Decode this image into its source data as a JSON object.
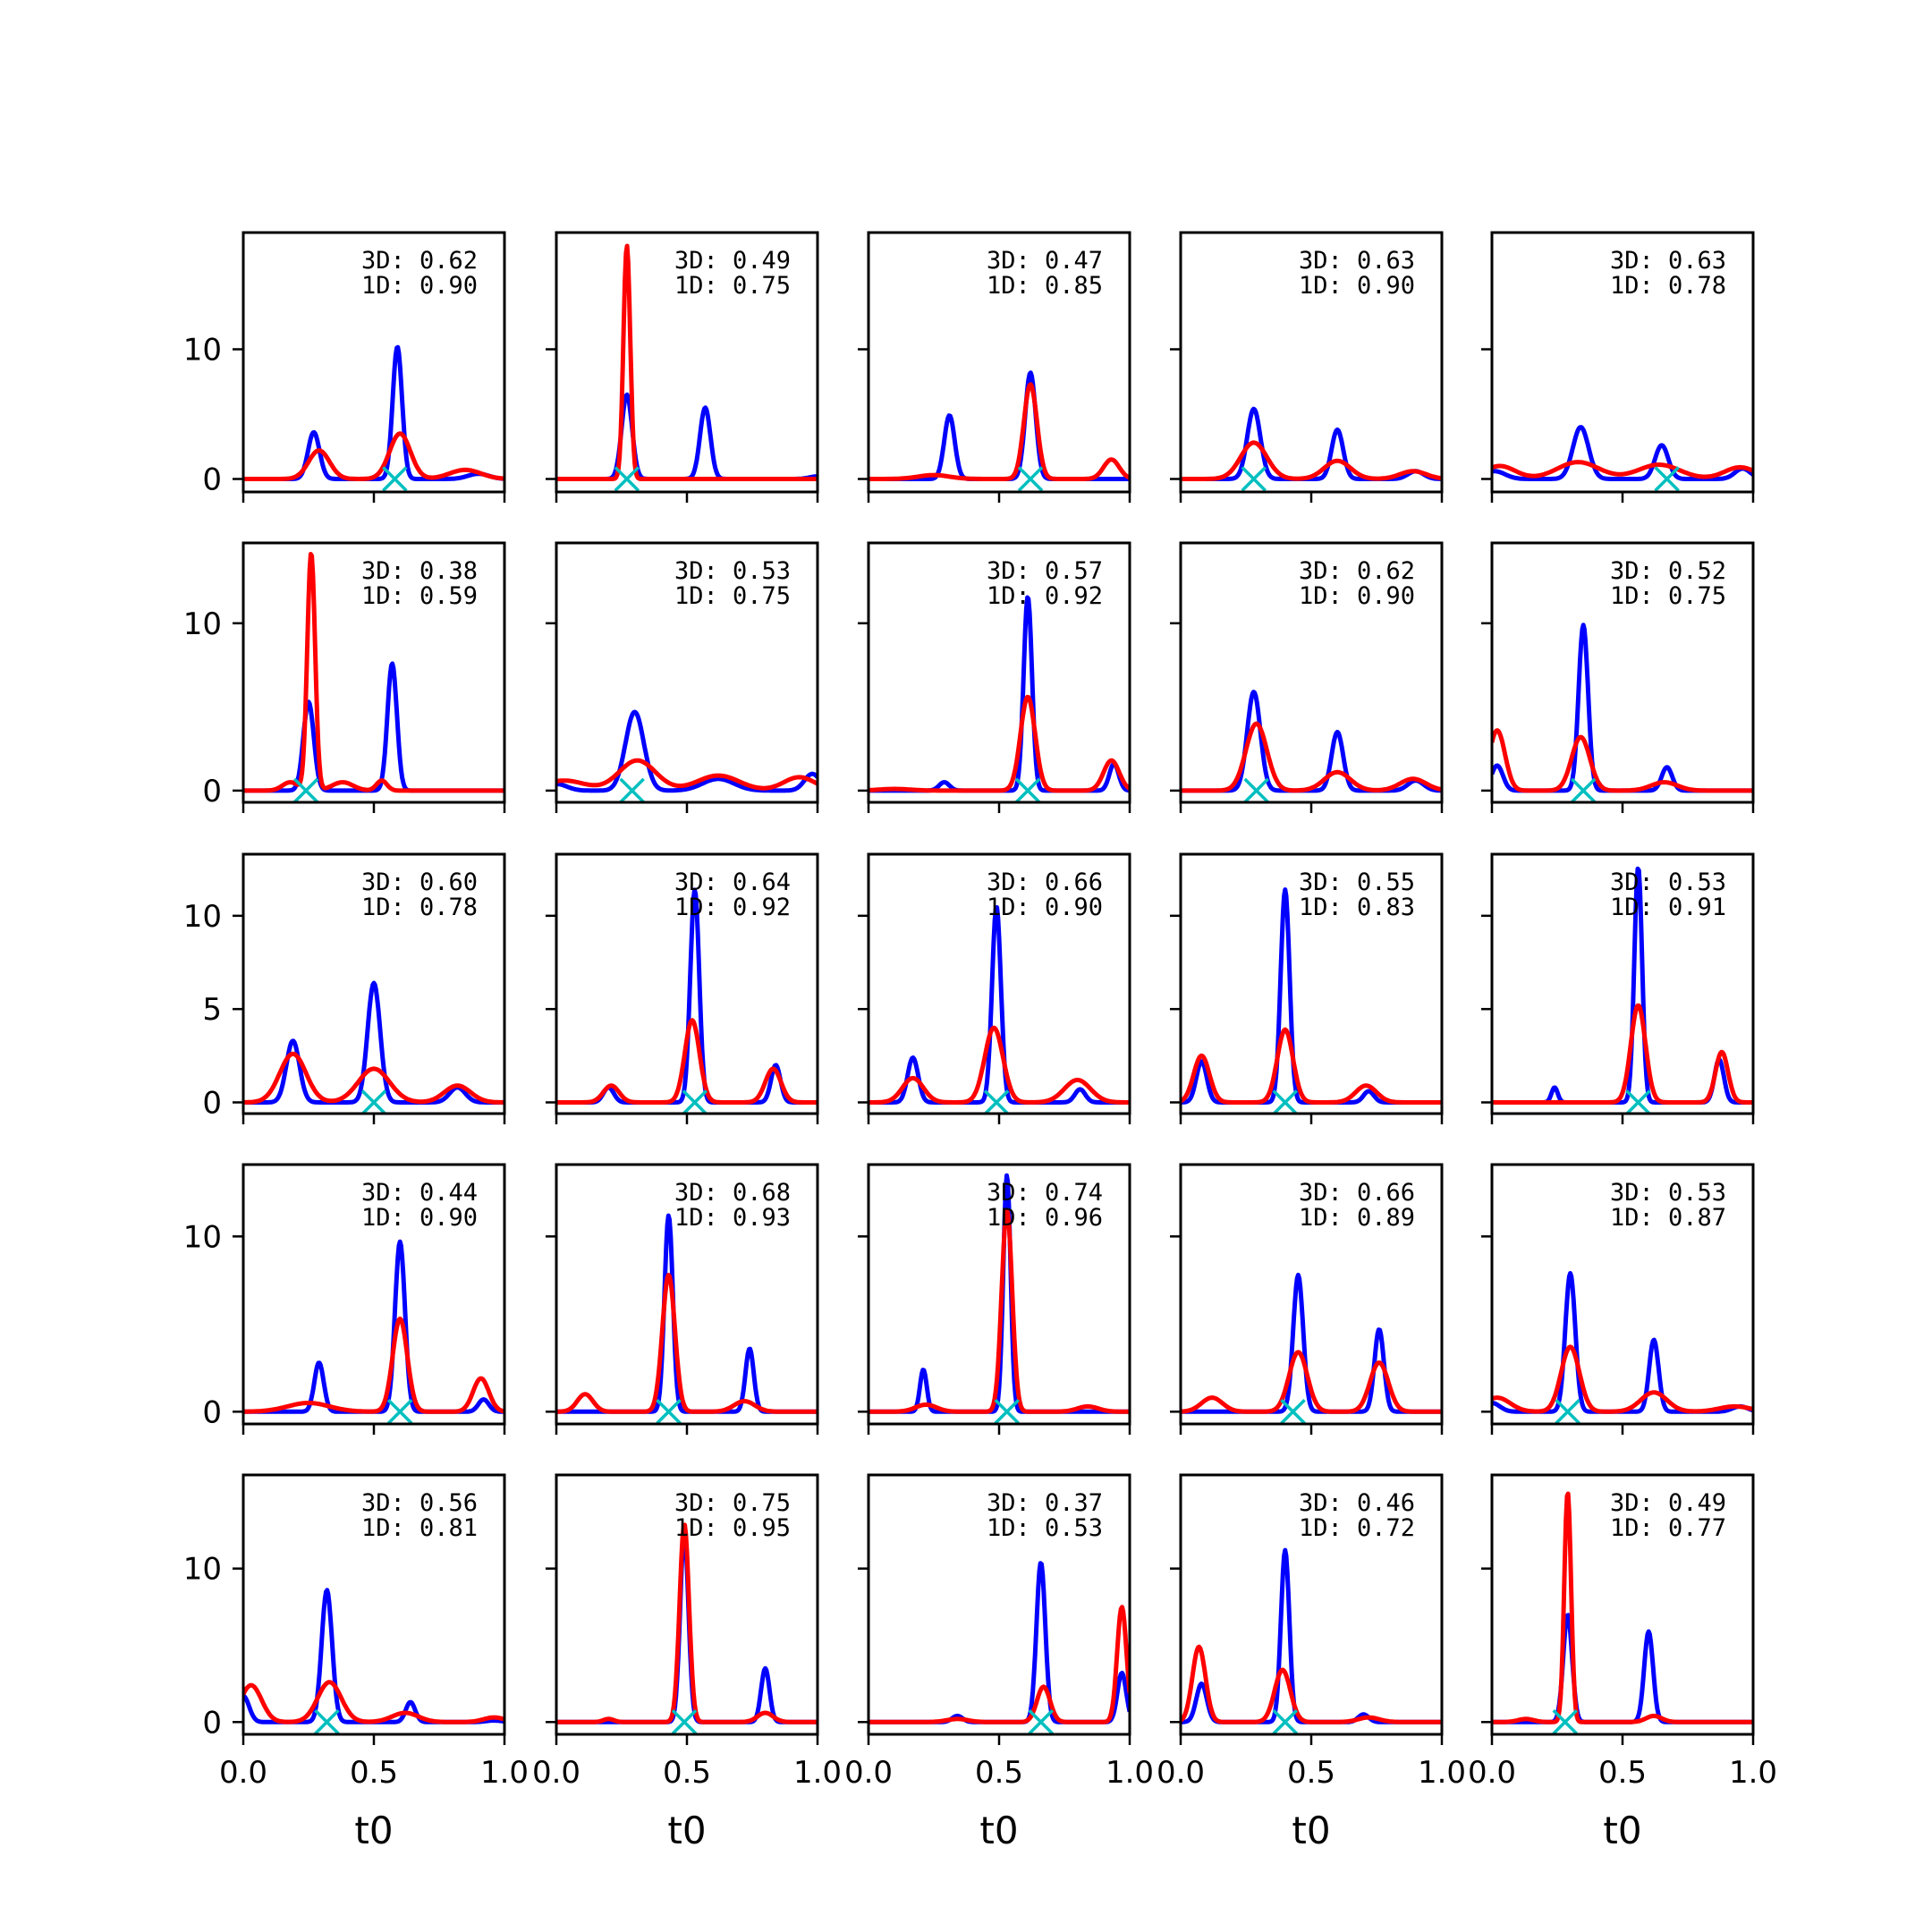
{
  "chart_data": {
    "type": "line",
    "layout": "5x5 grid of small multiples, shared x per column",
    "xlabel": "t0",
    "x_ticks": [
      "0.0",
      "0.5",
      "1.0"
    ],
    "xlim": [
      0,
      1
    ],
    "colors": {
      "blue": "#0000ff",
      "red": "#ff0000",
      "marker": "#00bfbf"
    },
    "rows": [
      {
        "y_ticks": [
          0,
          10
        ],
        "ylim": [
          -1,
          19
        ]
      },
      {
        "y_ticks": [
          0,
          10
        ],
        "ylim": [
          -0.7,
          14.8
        ]
      },
      {
        "y_ticks": [
          0,
          5,
          10
        ],
        "ylim": [
          -0.6,
          13.3
        ]
      },
      {
        "y_ticks": [
          0,
          10
        ],
        "ylim": [
          -0.7,
          14.1
        ]
      },
      {
        "y_ticks": [
          0,
          10
        ],
        "ylim": [
          -0.8,
          16.1
        ]
      }
    ],
    "panels": [
      {
        "annotation": [
          "3D: 0.62",
          "1D: 0.90"
        ],
        "marker_x": 0.58,
        "blue": [
          [
            0.27,
            3.6,
            0.022
          ],
          [
            0.59,
            10.2,
            0.018
          ],
          [
            0.9,
            0.4,
            0.04
          ]
        ],
        "red": [
          [
            0.29,
            2.2,
            0.04
          ],
          [
            0.6,
            3.5,
            0.04
          ],
          [
            0.85,
            0.7,
            0.06
          ]
        ]
      },
      {
        "annotation": [
          "3D: 0.49",
          "1D: 0.75"
        ],
        "marker_x": 0.27,
        "blue": [
          [
            0.27,
            6.5,
            0.02
          ],
          [
            0.57,
            5.5,
            0.02
          ],
          [
            1.0,
            0.2,
            0.03
          ]
        ],
        "red": [
          [
            0.27,
            18.0,
            0.013
          ]
        ]
      },
      {
        "annotation": [
          "3D: 0.47",
          "1D: 0.85"
        ],
        "marker_x": 0.62,
        "blue": [
          [
            0.31,
            4.9,
            0.02
          ],
          [
            0.62,
            8.2,
            0.02
          ]
        ],
        "red": [
          [
            0.25,
            0.3,
            0.06
          ],
          [
            0.62,
            7.3,
            0.025
          ],
          [
            0.93,
            1.5,
            0.03
          ]
        ]
      },
      {
        "annotation": [
          "3D: 0.63",
          "1D: 0.90"
        ],
        "marker_x": 0.28,
        "blue": [
          [
            0.28,
            5.4,
            0.025
          ],
          [
            0.6,
            3.8,
            0.022
          ],
          [
            0.9,
            0.6,
            0.03
          ]
        ],
        "red": [
          [
            0.28,
            2.8,
            0.05
          ],
          [
            0.6,
            1.4,
            0.05
          ],
          [
            0.89,
            0.6,
            0.05
          ]
        ]
      },
      {
        "annotation": [
          "3D: 0.63",
          "1D: 0.78"
        ],
        "marker_x": 0.67,
        "blue": [
          [
            0.01,
            0.6,
            0.04
          ],
          [
            0.34,
            4.0,
            0.03
          ],
          [
            0.65,
            2.6,
            0.025
          ],
          [
            0.96,
            0.8,
            0.03
          ]
        ],
        "red": [
          [
            0.03,
            1.0,
            0.06
          ],
          [
            0.33,
            1.3,
            0.08
          ],
          [
            0.64,
            1.1,
            0.08
          ],
          [
            0.95,
            0.9,
            0.06
          ]
        ]
      },
      {
        "annotation": [
          "3D: 0.38",
          "1D: 0.59"
        ],
        "marker_x": 0.24,
        "blue": [
          [
            0.25,
            5.3,
            0.02
          ],
          [
            0.57,
            7.6,
            0.018
          ]
        ],
        "red": [
          [
            0.26,
            14.2,
            0.015
          ],
          [
            0.18,
            0.5,
            0.03
          ],
          [
            0.38,
            0.5,
            0.04
          ],
          [
            0.53,
            0.6,
            0.02
          ]
        ]
      },
      {
        "annotation": [
          "3D: 0.53",
          "1D: 0.75"
        ],
        "marker_x": 0.29,
        "blue": [
          [
            0.0,
            0.4,
            0.04
          ],
          [
            0.3,
            4.7,
            0.035
          ],
          [
            0.62,
            0.7,
            0.06
          ],
          [
            0.98,
            1.0,
            0.03
          ]
        ],
        "red": [
          [
            0.03,
            0.6,
            0.08
          ],
          [
            0.31,
            1.8,
            0.07
          ],
          [
            0.62,
            0.9,
            0.08
          ],
          [
            0.93,
            0.8,
            0.06
          ]
        ]
      },
      {
        "annotation": [
          "3D: 0.57",
          "1D: 0.92"
        ],
        "marker_x": 0.61,
        "blue": [
          [
            0.29,
            0.5,
            0.02
          ],
          [
            0.61,
            11.6,
            0.016
          ],
          [
            0.94,
            1.6,
            0.018
          ]
        ],
        "red": [
          [
            0.1,
            0.1,
            0.06
          ],
          [
            0.61,
            5.6,
            0.028
          ],
          [
            0.93,
            1.8,
            0.03
          ]
        ]
      },
      {
        "annotation": [
          "3D: 0.62",
          "1D: 0.90"
        ],
        "marker_x": 0.29,
        "blue": [
          [
            0.28,
            5.9,
            0.025
          ],
          [
            0.6,
            3.5,
            0.022
          ],
          [
            0.9,
            0.6,
            0.03
          ]
        ],
        "red": [
          [
            0.29,
            4.0,
            0.04
          ],
          [
            0.6,
            1.1,
            0.05
          ],
          [
            0.89,
            0.7,
            0.05
          ]
        ]
      },
      {
        "annotation": [
          "3D: 0.52",
          "1D: 0.75"
        ],
        "marker_x": 0.35,
        "blue": [
          [
            0.02,
            1.5,
            0.022
          ],
          [
            0.35,
            9.9,
            0.018
          ],
          [
            0.67,
            1.4,
            0.02
          ]
        ],
        "red": [
          [
            0.02,
            3.6,
            0.03
          ],
          [
            0.34,
            3.2,
            0.035
          ],
          [
            0.66,
            0.5,
            0.05
          ]
        ]
      },
      {
        "annotation": [
          "3D: 0.60",
          "1D: 0.78"
        ],
        "marker_x": 0.5,
        "blue": [
          [
            0.19,
            3.3,
            0.025
          ],
          [
            0.5,
            6.4,
            0.024
          ],
          [
            0.82,
            0.8,
            0.03
          ]
        ],
        "red": [
          [
            0.19,
            2.6,
            0.05
          ],
          [
            0.5,
            1.8,
            0.06
          ],
          [
            0.82,
            0.9,
            0.05
          ]
        ]
      },
      {
        "annotation": [
          "3D: 0.64",
          "1D: 0.92"
        ],
        "marker_x": 0.53,
        "blue": [
          [
            0.2,
            0.8,
            0.02
          ],
          [
            0.53,
            11.4,
            0.017
          ],
          [
            0.84,
            2.0,
            0.018
          ]
        ],
        "red": [
          [
            0.21,
            0.9,
            0.03
          ],
          [
            0.52,
            4.4,
            0.028
          ],
          [
            0.83,
            1.8,
            0.03
          ]
        ]
      },
      {
        "annotation": [
          "3D: 0.66",
          "1D: 0.90"
        ],
        "marker_x": 0.49,
        "blue": [
          [
            0.17,
            2.4,
            0.02
          ],
          [
            0.49,
            10.5,
            0.017
          ],
          [
            0.81,
            0.7,
            0.02
          ]
        ],
        "red": [
          [
            0.17,
            1.3,
            0.04
          ],
          [
            0.48,
            4.0,
            0.035
          ],
          [
            0.8,
            1.2,
            0.05
          ]
        ]
      },
      {
        "annotation": [
          "3D: 0.55",
          "1D: 0.83"
        ],
        "marker_x": 0.4,
        "blue": [
          [
            0.08,
            2.2,
            0.02
          ],
          [
            0.4,
            11.4,
            0.017
          ],
          [
            0.72,
            0.6,
            0.02
          ]
        ],
        "red": [
          [
            0.08,
            2.5,
            0.03
          ],
          [
            0.4,
            3.9,
            0.03
          ],
          [
            0.71,
            0.9,
            0.04
          ]
        ]
      },
      {
        "annotation": [
          "3D: 0.53",
          "1D: 0.91"
        ],
        "marker_x": 0.56,
        "blue": [
          [
            0.24,
            0.8,
            0.012
          ],
          [
            0.56,
            12.6,
            0.015
          ],
          [
            0.87,
            2.3,
            0.018
          ]
        ],
        "red": [
          [
            0.56,
            5.2,
            0.028
          ],
          [
            0.88,
            2.7,
            0.024
          ]
        ]
      },
      {
        "annotation": [
          "3D: 0.44",
          "1D: 0.90"
        ],
        "marker_x": 0.6,
        "blue": [
          [
            0.29,
            2.8,
            0.018
          ],
          [
            0.6,
            9.7,
            0.019
          ],
          [
            0.92,
            0.7,
            0.02
          ]
        ],
        "red": [
          [
            0.25,
            0.5,
            0.08
          ],
          [
            0.6,
            5.3,
            0.028
          ],
          [
            0.91,
            1.9,
            0.03
          ]
        ]
      },
      {
        "annotation": [
          "3D: 0.68",
          "1D: 0.93"
        ],
        "marker_x": 0.43,
        "blue": [
          [
            0.43,
            11.2,
            0.016
          ],
          [
            0.74,
            3.6,
            0.016
          ]
        ],
        "red": [
          [
            0.11,
            1.0,
            0.03
          ],
          [
            0.43,
            7.8,
            0.024
          ],
          [
            0.72,
            0.6,
            0.04
          ]
        ]
      },
      {
        "annotation": [
          "3D: 0.74",
          "1D: 0.96"
        ],
        "marker_x": 0.53,
        "blue": [
          [
            0.21,
            2.4,
            0.013
          ],
          [
            0.53,
            13.5,
            0.014
          ]
        ],
        "red": [
          [
            0.22,
            0.4,
            0.04
          ],
          [
            0.53,
            11.5,
            0.02
          ],
          [
            0.84,
            0.3,
            0.04
          ]
        ]
      },
      {
        "annotation": [
          "3D: 0.66",
          "1D: 0.89"
        ],
        "marker_x": 0.43,
        "blue": [
          [
            0.45,
            7.8,
            0.019
          ],
          [
            0.76,
            4.7,
            0.018
          ]
        ],
        "red": [
          [
            0.12,
            0.8,
            0.04
          ],
          [
            0.45,
            3.4,
            0.035
          ],
          [
            0.76,
            2.8,
            0.035
          ]
        ]
      },
      {
        "annotation": [
          "3D: 0.53",
          "1D: 0.87"
        ],
        "marker_x": 0.29,
        "blue": [
          [
            0.0,
            0.5,
            0.03
          ],
          [
            0.3,
            7.9,
            0.019
          ],
          [
            0.62,
            4.1,
            0.018
          ],
          [
            0.95,
            0.3,
            0.03
          ]
        ],
        "red": [
          [
            0.02,
            0.8,
            0.05
          ],
          [
            0.3,
            3.7,
            0.035
          ],
          [
            0.62,
            1.1,
            0.05
          ],
          [
            0.93,
            0.3,
            0.06
          ]
        ]
      },
      {
        "annotation": [
          "3D: 0.56",
          "1D: 0.81"
        ],
        "marker_x": 0.32,
        "blue": [
          [
            0.0,
            1.7,
            0.022
          ],
          [
            0.32,
            8.6,
            0.02
          ],
          [
            0.64,
            1.3,
            0.018
          ],
          [
            0.96,
            0.1,
            0.03
          ]
        ],
        "red": [
          [
            0.03,
            2.4,
            0.04
          ],
          [
            0.33,
            2.6,
            0.045
          ],
          [
            0.62,
            0.6,
            0.05
          ],
          [
            0.96,
            0.3,
            0.04
          ]
        ]
      },
      {
        "annotation": [
          "3D: 0.75",
          "1D: 0.95"
        ],
        "marker_x": 0.49,
        "blue": [
          [
            0.49,
            12.3,
            0.016
          ],
          [
            0.8,
            3.5,
            0.016
          ]
        ],
        "red": [
          [
            0.49,
            12.9,
            0.018
          ],
          [
            0.2,
            0.2,
            0.02
          ],
          [
            0.8,
            0.6,
            0.03
          ]
        ]
      },
      {
        "annotation": [
          "3D: 0.37",
          "1D: 0.53"
        ],
        "marker_x": 0.66,
        "blue": [
          [
            0.34,
            0.4,
            0.02
          ],
          [
            0.66,
            10.4,
            0.017
          ],
          [
            0.97,
            3.2,
            0.017
          ]
        ],
        "red": [
          [
            0.34,
            0.2,
            0.04
          ],
          [
            0.67,
            2.3,
            0.025
          ],
          [
            0.97,
            7.5,
            0.018
          ]
        ]
      },
      {
        "annotation": [
          "3D: 0.46",
          "1D: 0.72"
        ],
        "marker_x": 0.4,
        "blue": [
          [
            0.08,
            2.5,
            0.02
          ],
          [
            0.4,
            11.2,
            0.016
          ],
          [
            0.7,
            0.5,
            0.02
          ]
        ],
        "red": [
          [
            0.07,
            4.9,
            0.025
          ],
          [
            0.39,
            3.4,
            0.03
          ],
          [
            0.72,
            0.3,
            0.04
          ]
        ]
      },
      {
        "annotation": [
          "3D: 0.49",
          "1D: 0.77"
        ],
        "marker_x": 0.28,
        "blue": [
          [
            0.29,
            7.0,
            0.017
          ],
          [
            0.6,
            5.9,
            0.017
          ]
        ],
        "red": [
          [
            0.29,
            15.0,
            0.013
          ],
          [
            0.13,
            0.2,
            0.03
          ],
          [
            0.62,
            0.4,
            0.03
          ]
        ]
      }
    ]
  }
}
